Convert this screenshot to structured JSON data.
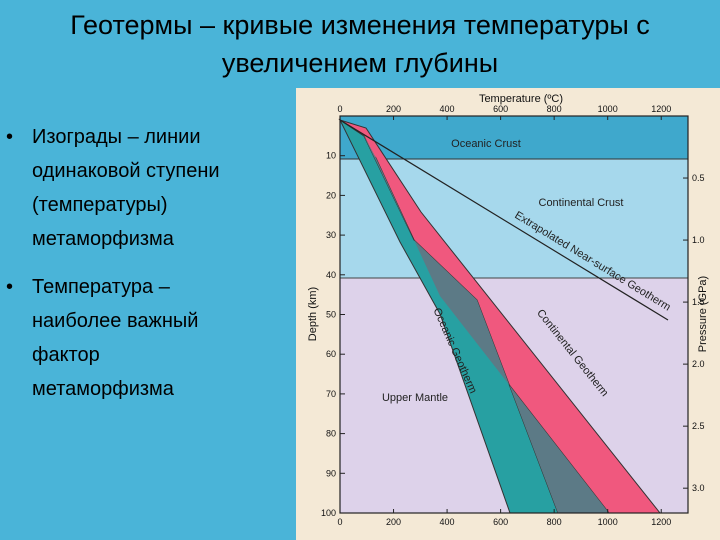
{
  "slide": {
    "title_line1": "Геотермы – кривые изменения температуры с",
    "title_line2": "увеличением глубины",
    "bullets": [
      {
        "bullet": "•",
        "lines": [
          "Изограды – линии",
          "одинаковой ступени",
          "(температуры)",
          "метаморфизма"
        ]
      },
      {
        "bullet": "•",
        "lines": [
          "Температура –",
          "наиболее важный",
          "фактор",
          "метаморфизма"
        ]
      }
    ]
  },
  "diagram": {
    "top_axis_title": "Temperature (ºC)",
    "left_axis_title": "Depth (km)",
    "right_axis_title": "Pressure (GPa)",
    "temperature_ticks": [
      "0",
      "200",
      "400",
      "600",
      "800",
      "1000",
      "1200"
    ],
    "depth_ticks": [
      "0",
      "10",
      "20",
      "30",
      "40",
      "50",
      "60",
      "70",
      "80",
      "90",
      "100"
    ],
    "pressure_ticks": [
      "0.5",
      "1.0",
      "1.5",
      "2.0",
      "2.5",
      "3.0"
    ],
    "zones": {
      "oceanic_crust": "Oceanic Crust",
      "continental_crust": "Continental Crust",
      "upper_mantle": "Upper Mantle"
    },
    "curves": {
      "near_surface": "Extrapolated Near-surface Geotherm",
      "continental": "Continental Geotherm",
      "oceanic": "Oceanic Geotherm"
    },
    "colors": {
      "oceanic_crust": "#3fa8cc",
      "continental_crust": "#a6d8ec",
      "upper_mantle": "#ddd2ea",
      "continental_band": "#f0587e",
      "oceanic_band": "#27a0a2",
      "overlap": "#5c7a86"
    }
  }
}
